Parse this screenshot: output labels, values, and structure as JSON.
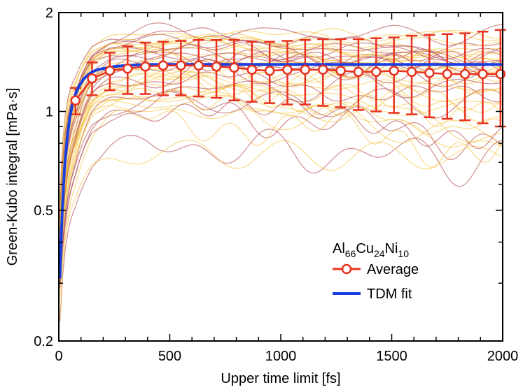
{
  "chart_data": {
    "type": "line",
    "xlabel": "Upper time limit [fs]",
    "ylabel": "Green-Kubo integral [mPa·s]",
    "xlim": [
      0,
      2000
    ],
    "ylim": [
      0.2,
      2
    ],
    "yscale": "log",
    "x_ticks": [
      0,
      500,
      1000,
      1500,
      2000
    ],
    "x_tick_labels": [
      "0",
      "500",
      "1000",
      "1500",
      "2000"
    ],
    "y_ticks": [
      0.2,
      0.5,
      1,
      2
    ],
    "y_tick_labels": [
      "0.2",
      "0.5",
      "1",
      "2"
    ],
    "grid": false,
    "legend": {
      "placement": "center-right",
      "title": {
        "base1": "Al",
        "sub1": "66",
        "base2": "Cu",
        "sub2": "24",
        "base3": "Ni",
        "sub3": "10"
      },
      "entries": [
        "Average",
        "TDM fit"
      ]
    },
    "colors": {
      "average": "#e8321e",
      "fit": "#1a3fe0",
      "samples_light": "#f5c542",
      "samples_dark": "#b2454a"
    },
    "series": [
      {
        "name": "Average",
        "style": "markers-with-errorbars",
        "x": [
          75,
          150,
          230,
          310,
          390,
          470,
          550,
          630,
          710,
          790,
          870,
          950,
          1030,
          1110,
          1190,
          1270,
          1350,
          1430,
          1510,
          1590,
          1670,
          1750,
          1830,
          1910,
          1990
        ],
        "values": [
          1.08,
          1.26,
          1.33,
          1.35,
          1.37,
          1.38,
          1.38,
          1.38,
          1.37,
          1.36,
          1.34,
          1.33,
          1.34,
          1.34,
          1.34,
          1.33,
          1.32,
          1.32,
          1.33,
          1.32,
          1.31,
          1.3,
          1.3,
          1.3,
          1.3
        ],
        "error_low": [
          0.98,
          1.12,
          1.16,
          1.13,
          1.13,
          1.12,
          1.12,
          1.11,
          1.1,
          1.08,
          1.07,
          1.06,
          1.05,
          1.05,
          1.04,
          1.03,
          1.01,
          1.0,
          0.99,
          0.98,
          0.96,
          0.95,
          0.94,
          0.92,
          0.9
        ],
        "error_high": [
          1.18,
          1.41,
          1.51,
          1.58,
          1.62,
          1.63,
          1.64,
          1.65,
          1.65,
          1.65,
          1.63,
          1.63,
          1.64,
          1.65,
          1.66,
          1.66,
          1.66,
          1.67,
          1.68,
          1.7,
          1.71,
          1.72,
          1.73,
          1.75,
          1.77
        ]
      },
      {
        "name": "TDM fit",
        "style": "line",
        "x": [
          5,
          10,
          15,
          20,
          25,
          30,
          40,
          50,
          60,
          75,
          90,
          110,
          130,
          150,
          175,
          200,
          250,
          300,
          350,
          400,
          500,
          600,
          800,
          1000,
          1200,
          1400,
          1600,
          1800,
          2000
        ],
        "values": [
          0.31,
          0.4,
          0.49,
          0.57,
          0.66,
          0.73,
          0.86,
          0.96,
          1.04,
          1.13,
          1.19,
          1.25,
          1.29,
          1.32,
          1.34,
          1.35,
          1.37,
          1.38,
          1.385,
          1.39,
          1.39,
          1.39,
          1.39,
          1.39,
          1.39,
          1.39,
          1.39,
          1.39,
          1.39
        ]
      }
    ]
  }
}
